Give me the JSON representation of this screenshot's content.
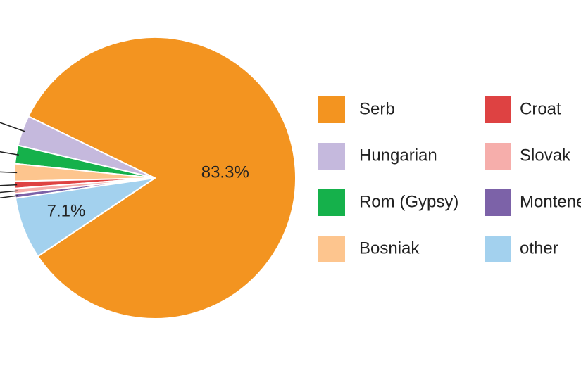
{
  "chart_data": {
    "type": "pie",
    "categories": [
      "Serb",
      "Hungarian",
      "Rom (Gypsy)",
      "Bosniak",
      "Croat",
      "Slovak",
      "Montenegrin",
      "other"
    ],
    "values": [
      83.3,
      3.5,
      2.1,
      2.0,
      0.8,
      0.6,
      0.5,
      7.1
    ],
    "value_labels": [
      "83.3%",
      null,
      null,
      null,
      null,
      null,
      null,
      "7.1%"
    ],
    "colors": [
      "#f39420",
      "#c5b9dd",
      "#15b14b",
      "#fdc58e",
      "#de4242",
      "#f6aeab",
      "#7c62a8",
      "#a3d1ee"
    ],
    "legend": "right"
  }
}
